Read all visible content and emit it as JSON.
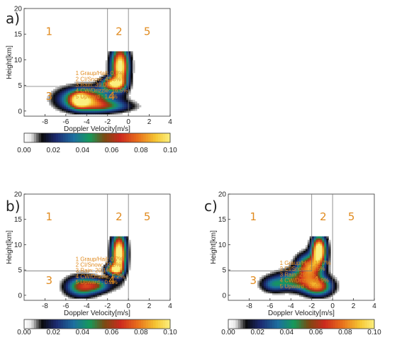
{
  "chart_data": [
    {
      "type": "heatmap",
      "panel_label": "a)",
      "xlabel": "Doppler Velocity[m/s]",
      "ylabel": "Height[km]",
      "xlim": [
        -10,
        4
      ],
      "ylim": [
        -1,
        20
      ],
      "xticks": [
        "-8",
        "-6",
        "-4",
        "-2",
        "0",
        "2",
        "4"
      ],
      "yticks": [
        "0",
        "5",
        "10",
        "15",
        "20"
      ],
      "regions": [
        "1",
        "2",
        "5",
        "3",
        "4"
      ],
      "classes": [
        "1 Graup/Hail: 0.3%",
        "2 CI/Snow:   43.3%",
        "3 Rain:      39.0%",
        "4 CW/Drizzle: 16.5%",
        "5 Upward    : 1.0%"
      ],
      "colorbar": {
        "ticks": [
          "0.00",
          "0.02",
          "0.04",
          "0.06",
          "0.08",
          "0.10"
        ],
        "range": [
          0,
          0.1
        ]
      }
    },
    {
      "type": "heatmap",
      "panel_label": "b)",
      "xlabel": "Doppler Velocity[m/s]",
      "ylabel": "Height[km]",
      "xlim": [
        -10,
        4
      ],
      "ylim": [
        -1,
        20
      ],
      "xticks": [
        "-8",
        "-6",
        "-4",
        "-2",
        "0",
        "2",
        "4"
      ],
      "yticks": [
        "0",
        "5",
        "10",
        "15",
        "20"
      ],
      "regions": [
        "1",
        "2",
        "5",
        "3",
        "4"
      ],
      "classes": [
        "1 Graup/Hail: 0.7%",
        "2 CI/Snow:    73.8%",
        "3 Rain:       20.1%",
        "4 CW/Drizzle: 5.2%",
        "5 Upward    : 0.2%"
      ],
      "colorbar": {
        "ticks": [
          "0.00",
          "0.02",
          "0.04",
          "0.06",
          "0.08",
          "0.10"
        ],
        "range": [
          0,
          0.1
        ]
      }
    },
    {
      "type": "heatmap",
      "panel_label": "c)",
      "xlabel": "Doppler Velocity[m/s]",
      "ylabel": "Height[km]",
      "xlim": [
        -10,
        4
      ],
      "ylim": [
        -1,
        20
      ],
      "xticks": [
        "-8",
        "-6",
        "-4",
        "-2",
        "0",
        "2",
        "4"
      ],
      "yticks": [
        "0",
        "5",
        "10",
        "15",
        "20"
      ],
      "regions": [
        "1",
        "2",
        "5",
        "3",
        "4"
      ],
      "classes": [
        "1 Graup/Hail: 17.7%",
        "2 CI/Snow:    45.5%",
        "3 Rain:       29.6%",
        "4 CW/Drizzle: 6.9%",
        "5 Upward    : 0.4%"
      ],
      "colorbar": {
        "ticks": [
          "0.00",
          "0.02",
          "0.04",
          "0.06",
          "0.08",
          "0.10"
        ],
        "range": [
          0,
          0.1
        ]
      }
    }
  ]
}
